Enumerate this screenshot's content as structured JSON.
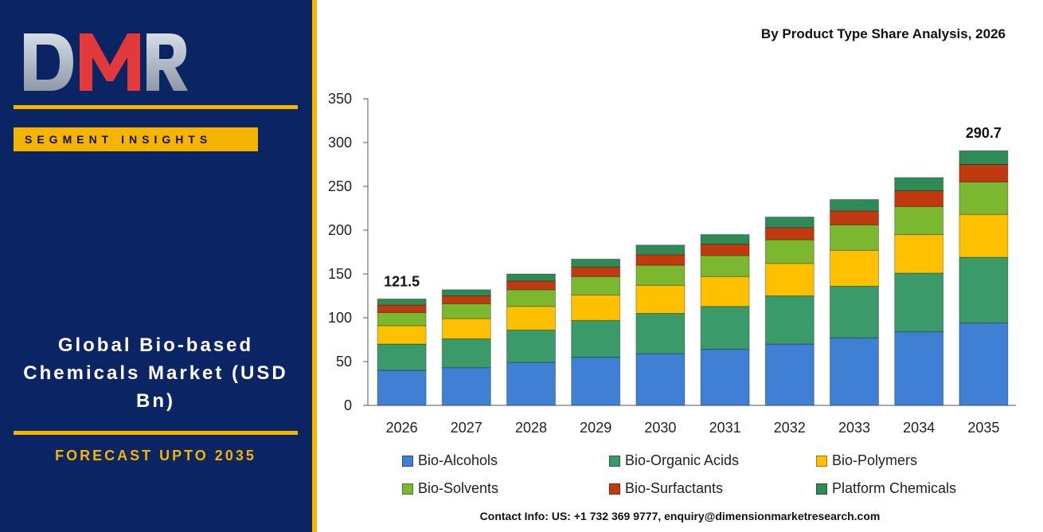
{
  "brand": {
    "logo_text": "DMR",
    "segment_label": "SEGMENT INSIGHTS",
    "market_title": "Global Bio-based Chemicals Market (USD Bn)",
    "forecast_label": "FORECAST UPTO 2035"
  },
  "contact": "Contact Info: US: +1 732 369 9777, enquiry@dimensionmarketresearch.com",
  "chart_data": {
    "type": "bar",
    "stacked": true,
    "title": "By Product Type Share Analysis, 2026",
    "xlabel": "",
    "ylabel": "",
    "ylim": [
      0,
      350
    ],
    "yticks": [
      0,
      50,
      100,
      150,
      200,
      250,
      300,
      350
    ],
    "grid": false,
    "legend_position": "bottom",
    "categories": [
      "2026",
      "2027",
      "2028",
      "2029",
      "2030",
      "2031",
      "2032",
      "2033",
      "2034",
      "2035"
    ],
    "series": [
      {
        "name": "Bio-Alcohols",
        "color": "#3f7fd4",
        "values": [
          40,
          43,
          49,
          55,
          59,
          64,
          70,
          77,
          84,
          94
        ]
      },
      {
        "name": "Bio-Organic Acids",
        "color": "#3a9a6a",
        "values": [
          30,
          33,
          37,
          42,
          46,
          49,
          55,
          59,
          67,
          75
        ]
      },
      {
        "name": "Bio-Polymers",
        "color": "#ffc000",
        "values": [
          21,
          23,
          27,
          29,
          32,
          34,
          37,
          41,
          44,
          49
        ]
      },
      {
        "name": "Bio-Solvents",
        "color": "#7cb82f",
        "values": [
          15,
          17,
          19,
          21,
          23,
          24,
          27,
          29,
          32,
          37
        ]
      },
      {
        "name": "Bio-Surfactants",
        "color": "#c0390f",
        "values": [
          8.5,
          9,
          10,
          11,
          12,
          13,
          14,
          16,
          18,
          20
        ]
      },
      {
        "name": "Platform Chemicals",
        "color": "#2e8b57",
        "values": [
          7,
          7,
          8,
          9,
          11,
          11,
          12,
          13,
          15,
          15.7
        ]
      }
    ],
    "annotations": [
      {
        "category": "2026",
        "text": "121.5"
      },
      {
        "category": "2035",
        "text": "290.7"
      }
    ]
  }
}
